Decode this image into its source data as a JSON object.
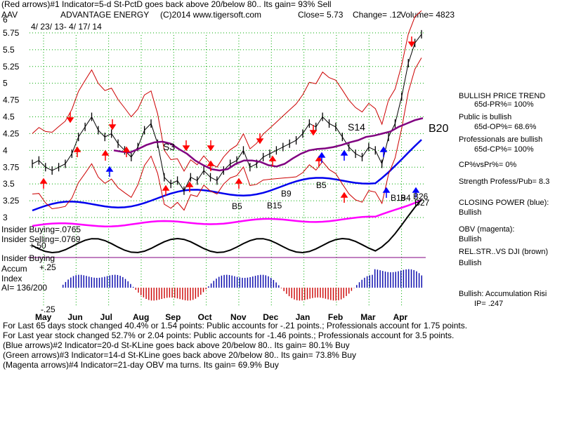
{
  "header": {
    "line1": "(Red arrows)#1 Indicator=5-d St-PctD goes back above 20/below 80.. Its gain= 93% Sell",
    "ticker": "AAV",
    "company": "ADVANTAGE ENERGY",
    "copyright": "(C)2014 www.tigersoft.com",
    "close": "Close=  5.73",
    "change": "Change= .12",
    "volume": "Volume= 4823",
    "date_range": "4/ 23/ 13-  4/ 17/ 14",
    "axis_top_label": "6"
  },
  "chart_data": {
    "type": "line",
    "title": "ADVANTAGE ENERGY",
    "ylim": [
      3,
      6
    ],
    "y_ticks": [
      "5.75",
      "5.5",
      "5.25",
      "5",
      "4.75",
      "4.5",
      "4.25",
      "4",
      "3.75",
      "3.5",
      "3.25",
      "3"
    ],
    "x_ticks": [
      "May",
      "Jun",
      "Jul",
      "Aug",
      "Sep",
      "Oct",
      "Nov",
      "Dec",
      "Jan",
      "Feb",
      "Mar",
      "Apr"
    ],
    "grid": true,
    "series": [
      {
        "values": [
          3.8,
          3.85,
          3.75,
          3.7,
          3.75,
          3.8,
          3.95,
          4.2,
          4.35,
          4.5,
          4.3,
          4.2,
          4.25,
          4.1,
          4.0,
          3.9,
          4.05,
          4.3,
          4.4,
          4.1,
          3.6,
          3.5,
          3.55,
          3.4,
          3.6,
          3.55,
          3.7,
          3.6,
          3.55,
          3.7,
          3.8,
          3.85,
          4.0,
          3.75,
          3.8,
          3.9,
          3.95,
          4.0,
          4.05,
          4.1,
          4.15,
          4.25,
          4.4,
          4.35,
          4.5,
          4.4,
          4.35,
          4.2,
          4.05,
          3.95,
          3.9,
          4.05,
          4.0,
          3.8,
          4.2,
          4.4,
          4.8,
          5.3,
          5.6,
          5.73
        ]
      },
      {
        "values": [
          4.0,
          3.98,
          3.97,
          4.02,
          4.08,
          4.12,
          4.13,
          4.1,
          4.02,
          3.95,
          3.85,
          3.78,
          3.72,
          3.7,
          3.72,
          3.8,
          3.85,
          3.85,
          3.83,
          3.78,
          3.76,
          3.8,
          3.88,
          3.95,
          4.0,
          4.02,
          4.03,
          4.05,
          4.08,
          4.12,
          4.15,
          4.2,
          4.22,
          4.25,
          4.28,
          4.35,
          4.4,
          4.45,
          4.48
        ]
      }
    ],
    "signal_labels": [
      "S3",
      "S14",
      "B5",
      "B15",
      "B9",
      "B5",
      "B20",
      "B19",
      "B4",
      "B26",
      "B27"
    ]
  },
  "indicators": {
    "insider_buying_1": "Insider Buying=.0765",
    "insider_selling": "Insider Selling=.0769",
    "plus50": "+.50",
    "insider_buying_2": "Insider Buying",
    "plus25": "+.25",
    "accum": "Accum",
    "index": "Index",
    "ai": "AI= 136/200",
    "minus25": "-.25"
  },
  "panel": {
    "trend_title": "BULLISH PRICE TREND",
    "pr": "65d-PR%= 100%",
    "public_bullish": "Public is bullish",
    "op": "65d-OP%= 68.6%",
    "pros_bullish": "Professionals are bullish",
    "cp": "65d-CP%= 100%",
    "cp_vs_pr": "CP%vsPr%=  0%",
    "strength": "Strength Profess/Pub= 8.3",
    "closing_power": "CLOSING POWER (blue):",
    "cp_status": "Bullish",
    "obv": "OBV (magenta):",
    "obv_status": "Bullish",
    "relstr": "REL.STR..VS DJI (brown)",
    "relstr_status": "Bullish",
    "accum_risk": "Bullish: Accumulation Risi",
    "ip": "IP=  .247"
  },
  "footer": {
    "line1": "For Last 65 days stock changed  40.4% or  1.54 points:  Public accounts for -.21 points.;  Professionals account for  1.75 points.",
    "line2": "For Last year stock changed  52.7% or  2.04 points:  Public accounts for -1.46 points.;  Professionals account for  3.5 points.",
    "line3": "(Blue arrows)#2 Indicator=20-d St-KLine goes back above 20/below 80.. Its gain= 80.1% Buy",
    "line4": "(Green arrows)#3 Indicator=14-d St-KLine goes back above 20/below 80.. Its gain= 73.8% Buy",
    "line5": "(Magenta arrows)#4 Indicator=21-day OBV ma turns. Its gain= 69.9% Buy"
  },
  "colors": {
    "price": "#000000",
    "band": "#cc0000",
    "ma": "#800080",
    "closing_power": "#0000ee",
    "obv": "#ff00ff",
    "grid": "#00aa00",
    "accum": "#0000aa",
    "accum_neg": "#cc0000",
    "red_arrow": "#ff0000",
    "blue_arrow": "#0000ff"
  }
}
